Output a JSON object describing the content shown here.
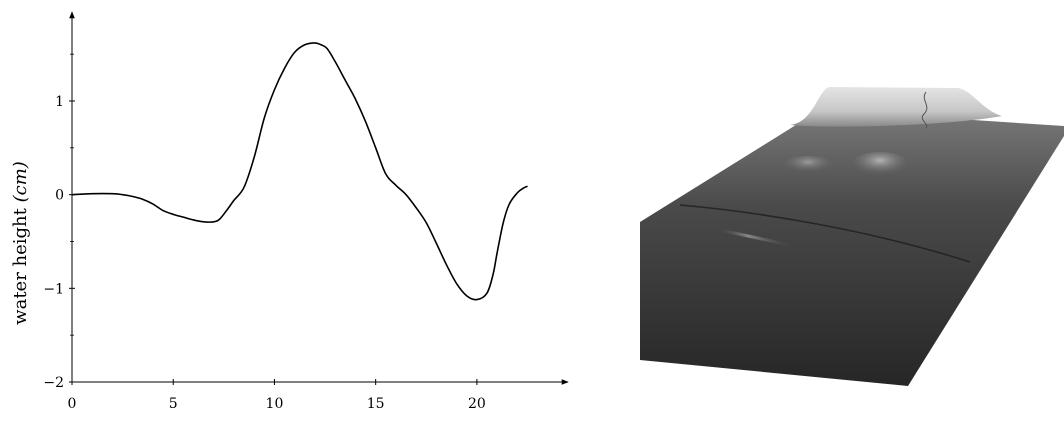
{
  "chart_data": {
    "type": "line",
    "ylabel_main": "water height ",
    "ylabel_unit": "(cm)",
    "xlabel": "",
    "title": "",
    "xlim": [
      0,
      24.5
    ],
    "ylim": [
      -2,
      1.95
    ],
    "xticks": [
      0,
      5,
      10,
      15,
      20
    ],
    "yticks": [
      -2,
      -1,
      0,
      1
    ],
    "yminor": [
      -1.5,
      -0.5,
      0.5,
      1.5
    ],
    "grid": false,
    "series": [
      {
        "x": [
          0,
          1,
          2,
          2.5,
          3,
          3.5,
          4,
          4.5,
          5,
          5.5,
          6,
          6.5,
          7,
          7.3,
          7.7,
          8,
          8.5,
          9,
          9.5,
          10,
          10.5,
          11,
          11.5,
          12,
          12.3,
          12.6,
          13,
          13.5,
          14,
          14.5,
          15,
          15.5,
          16,
          16.5,
          17,
          17.5,
          18,
          18.5,
          19,
          19.5,
          20,
          20.5,
          20.8,
          21,
          21.3,
          21.6,
          22,
          22.3,
          22.5
        ],
        "y": [
          0,
          0.01,
          0.01,
          0,
          -0.02,
          -0.05,
          -0.1,
          -0.17,
          -0.21,
          -0.24,
          -0.27,
          -0.29,
          -0.29,
          -0.26,
          -0.15,
          -0.06,
          0.08,
          0.4,
          0.82,
          1.12,
          1.35,
          1.52,
          1.6,
          1.62,
          1.6,
          1.56,
          1.42,
          1.22,
          1.02,
          0.78,
          0.5,
          0.22,
          0.1,
          0,
          -0.14,
          -0.3,
          -0.52,
          -0.75,
          -0.95,
          -1.08,
          -1.12,
          -1.05,
          -0.85,
          -0.62,
          -0.3,
          -0.1,
          0.02,
          0.07,
          0.09
        ]
      }
    ]
  }
}
